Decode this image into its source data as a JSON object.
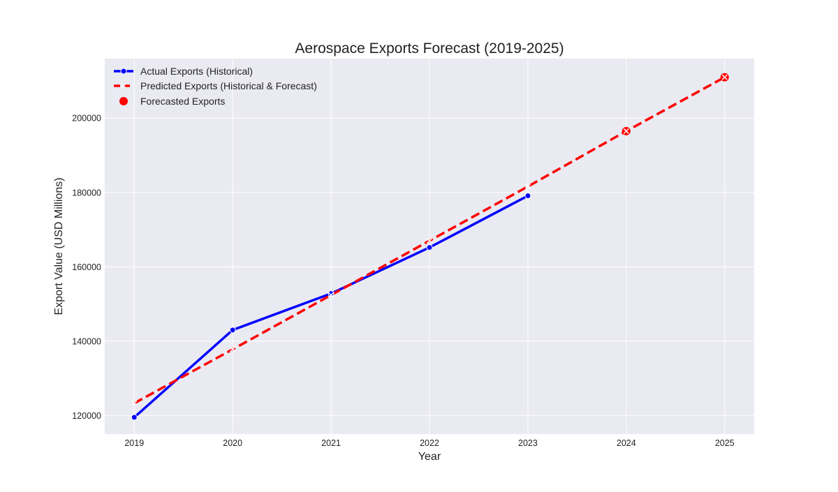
{
  "chart_data": {
    "type": "line",
    "title": "Aerospace Exports Forecast (2019-2025)",
    "xlabel": "Year",
    "ylabel": "Export Value (USD Millions)",
    "x_ticks": [
      "2019",
      "2020",
      "2021",
      "2022",
      "2023",
      "2024",
      "2025"
    ],
    "y_ticks": [
      "120000",
      "140000",
      "160000",
      "180000",
      "200000"
    ],
    "xlim": [
      2018.7,
      2025.3
    ],
    "ylim": [
      115000,
      216000
    ],
    "grid": true,
    "legend_position": "top-left",
    "series": [
      {
        "name": "Actual Exports (Historical)",
        "color": "#0000ff",
        "style": "solid-line-with-circle-markers",
        "x": [
          2019,
          2020,
          2021,
          2022,
          2023
        ],
        "y": [
          119500,
          143000,
          152800,
          165200,
          179100
        ]
      },
      {
        "name": "Predicted Exports (Historical & Forecast)",
        "color": "#ff0000",
        "style": "dashed-line-with-x-markers",
        "x": [
          2019,
          2020,
          2021,
          2022,
          2023,
          2024,
          2025
        ],
        "y": [
          123300,
          137800,
          152400,
          167000,
          181600,
          196500,
          211000
        ]
      },
      {
        "name": "Forecasted Exports",
        "color": "#ff0000",
        "style": "scatter-circle-markers",
        "x": [
          2024,
          2025
        ],
        "y": [
          196500,
          211000
        ]
      }
    ]
  }
}
